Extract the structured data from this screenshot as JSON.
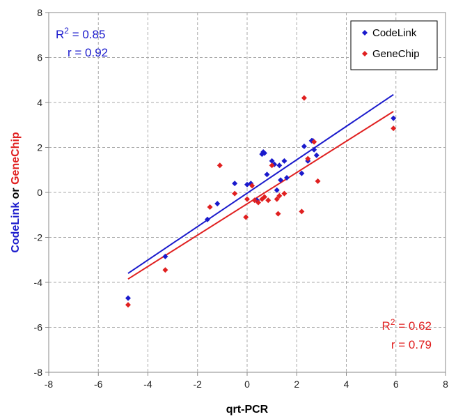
{
  "chart_data": {
    "type": "scatter",
    "xlabel": "qrt-PCR",
    "ylabel_parts": [
      {
        "text": "CodeLink",
        "color": "#1a1acc"
      },
      {
        "text": " or ",
        "color": "#000000"
      },
      {
        "text": "GeneChip",
        "color": "#e02020"
      }
    ],
    "xlim": [
      -8,
      8
    ],
    "ylim": [
      -8,
      8
    ],
    "xticks": [
      "-8",
      "-6",
      "-4",
      "-2",
      "0",
      "2",
      "4",
      "6",
      "8"
    ],
    "yticks": [
      "-8",
      "-6",
      "-4",
      "-2",
      "0",
      "2",
      "4",
      "6",
      "8"
    ],
    "grid": true,
    "legend_position": "top-right",
    "series": [
      {
        "name": "CodeLink",
        "color": "#1a1acc",
        "marker": "diamond",
        "stats": {
          "r2_label": "R",
          "r2_value": "= 0.85",
          "r_label": "r = 0.92"
        },
        "fit_line": [
          [
            -4.8,
            -3.6
          ],
          [
            5.9,
            4.35
          ]
        ],
        "points": [
          [
            -4.8,
            -4.7
          ],
          [
            -3.3,
            -2.85
          ],
          [
            -1.6,
            -1.2
          ],
          [
            -1.2,
            -0.5
          ],
          [
            -0.5,
            0.4
          ],
          [
            0.0,
            0.35
          ],
          [
            0.15,
            0.4
          ],
          [
            0.4,
            -0.35
          ],
          [
            0.6,
            1.7
          ],
          [
            0.65,
            1.8
          ],
          [
            0.7,
            1.75
          ],
          [
            0.8,
            0.8
          ],
          [
            1.0,
            1.4
          ],
          [
            1.1,
            1.25
          ],
          [
            1.2,
            0.1
          ],
          [
            1.3,
            1.2
          ],
          [
            1.35,
            0.55
          ],
          [
            1.5,
            1.4
          ],
          [
            1.6,
            0.65
          ],
          [
            2.2,
            0.85
          ],
          [
            2.3,
            2.05
          ],
          [
            2.45,
            1.4
          ],
          [
            2.6,
            2.3
          ],
          [
            2.65,
            2.3
          ],
          [
            2.7,
            1.9
          ],
          [
            2.8,
            1.65
          ],
          [
            5.9,
            3.3
          ]
        ]
      },
      {
        "name": "GeneChip",
        "color": "#e02020",
        "marker": "diamond",
        "stats": {
          "r2_label": "R",
          "r2_value": "= 0.62",
          "r_label": "r = 0.79"
        },
        "fit_line": [
          [
            -4.8,
            -3.85
          ],
          [
            5.9,
            3.6
          ]
        ],
        "points": [
          [
            -4.8,
            -5.0
          ],
          [
            -3.3,
            -3.45
          ],
          [
            -1.5,
            -0.65
          ],
          [
            -1.1,
            1.2
          ],
          [
            -0.5,
            -0.05
          ],
          [
            -0.05,
            -1.1
          ],
          [
            0.0,
            -0.3
          ],
          [
            0.2,
            0.3
          ],
          [
            0.3,
            -0.35
          ],
          [
            0.45,
            -0.45
          ],
          [
            0.6,
            -0.3
          ],
          [
            0.7,
            -0.2
          ],
          [
            0.85,
            -0.35
          ],
          [
            1.0,
            1.2
          ],
          [
            1.2,
            -0.3
          ],
          [
            1.25,
            -0.95
          ],
          [
            1.3,
            -0.15
          ],
          [
            1.5,
            -0.05
          ],
          [
            2.2,
            -0.85
          ],
          [
            2.3,
            4.2
          ],
          [
            2.45,
            1.5
          ],
          [
            2.7,
            2.25
          ],
          [
            2.85,
            0.5
          ],
          [
            5.9,
            2.85
          ]
        ]
      }
    ]
  }
}
